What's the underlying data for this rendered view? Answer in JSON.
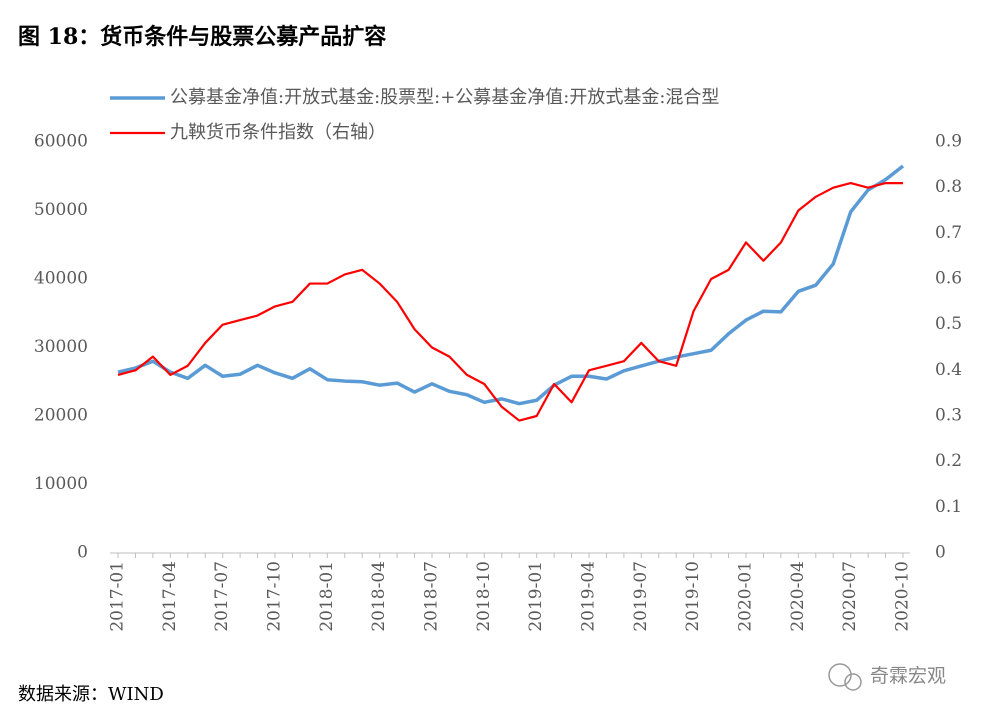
{
  "chart_data": {
    "type": "line",
    "title": "图 18：货币条件与股票公募产品扩容",
    "source": "数据来源：WIND",
    "watermark": "奇霖宏观",
    "categories": [
      "2017-01",
      null,
      null,
      "2017-04",
      null,
      null,
      "2017-07",
      null,
      null,
      "2017-10",
      null,
      null,
      "2018-01",
      null,
      null,
      "2018-04",
      null,
      null,
      "2018-07",
      null,
      null,
      "2018-10",
      null,
      null,
      "2019-01",
      null,
      null,
      "2019-04",
      null,
      null,
      "2019-07",
      null,
      null,
      "2019-10",
      null,
      null,
      "2020-01",
      null,
      null,
      "2020-04",
      null,
      null,
      "2020-07",
      null,
      null,
      "2020-10"
    ],
    "series": [
      {
        "name": "公募基金净值:开放式基金:股票型:+公募基金净值:开放式基金:混合型",
        "color": "#5b9bd5",
        "axis": "y",
        "values": [
          26400,
          27000,
          28000,
          26400,
          25500,
          27400,
          25800,
          26100,
          27400,
          26300,
          25500,
          26900,
          25300,
          25100,
          25000,
          24500,
          24800,
          23500,
          24700,
          23600,
          23100,
          22000,
          22500,
          21800,
          22300,
          24500,
          25800,
          25800,
          25400,
          26600,
          27300,
          28000,
          28600,
          29100,
          29600,
          32000,
          34000,
          35300,
          35200,
          38200,
          39100,
          42200,
          49800,
          53000,
          54500,
          56500
        ]
      },
      {
        "name": "九鞅货币条件指数（右轴）",
        "color": "#ff0000",
        "axis": "y2",
        "values": [
          0.39,
          0.4,
          0.43,
          0.39,
          0.41,
          0.46,
          0.5,
          0.51,
          0.52,
          0.54,
          0.55,
          0.59,
          0.59,
          0.61,
          0.62,
          0.59,
          0.55,
          0.49,
          0.45,
          0.43,
          0.39,
          0.37,
          0.32,
          0.29,
          0.3,
          0.37,
          0.33,
          0.4,
          0.41,
          0.42,
          0.46,
          0.42,
          0.41,
          0.53,
          0.6,
          0.62,
          0.68,
          0.64,
          0.68,
          0.75,
          0.78,
          0.8,
          0.81,
          0.8,
          0.81,
          0.81
        ]
      }
    ],
    "ylim": [
      0,
      60000
    ],
    "yticks": [
      0,
      10000,
      20000,
      30000,
      40000,
      50000,
      60000
    ],
    "y2lim": [
      0,
      0.9
    ],
    "y2ticks": [
      0,
      0.1,
      0.2,
      0.3,
      0.4,
      0.5,
      0.6,
      0.7,
      0.8,
      0.9
    ],
    "grid": false
  }
}
